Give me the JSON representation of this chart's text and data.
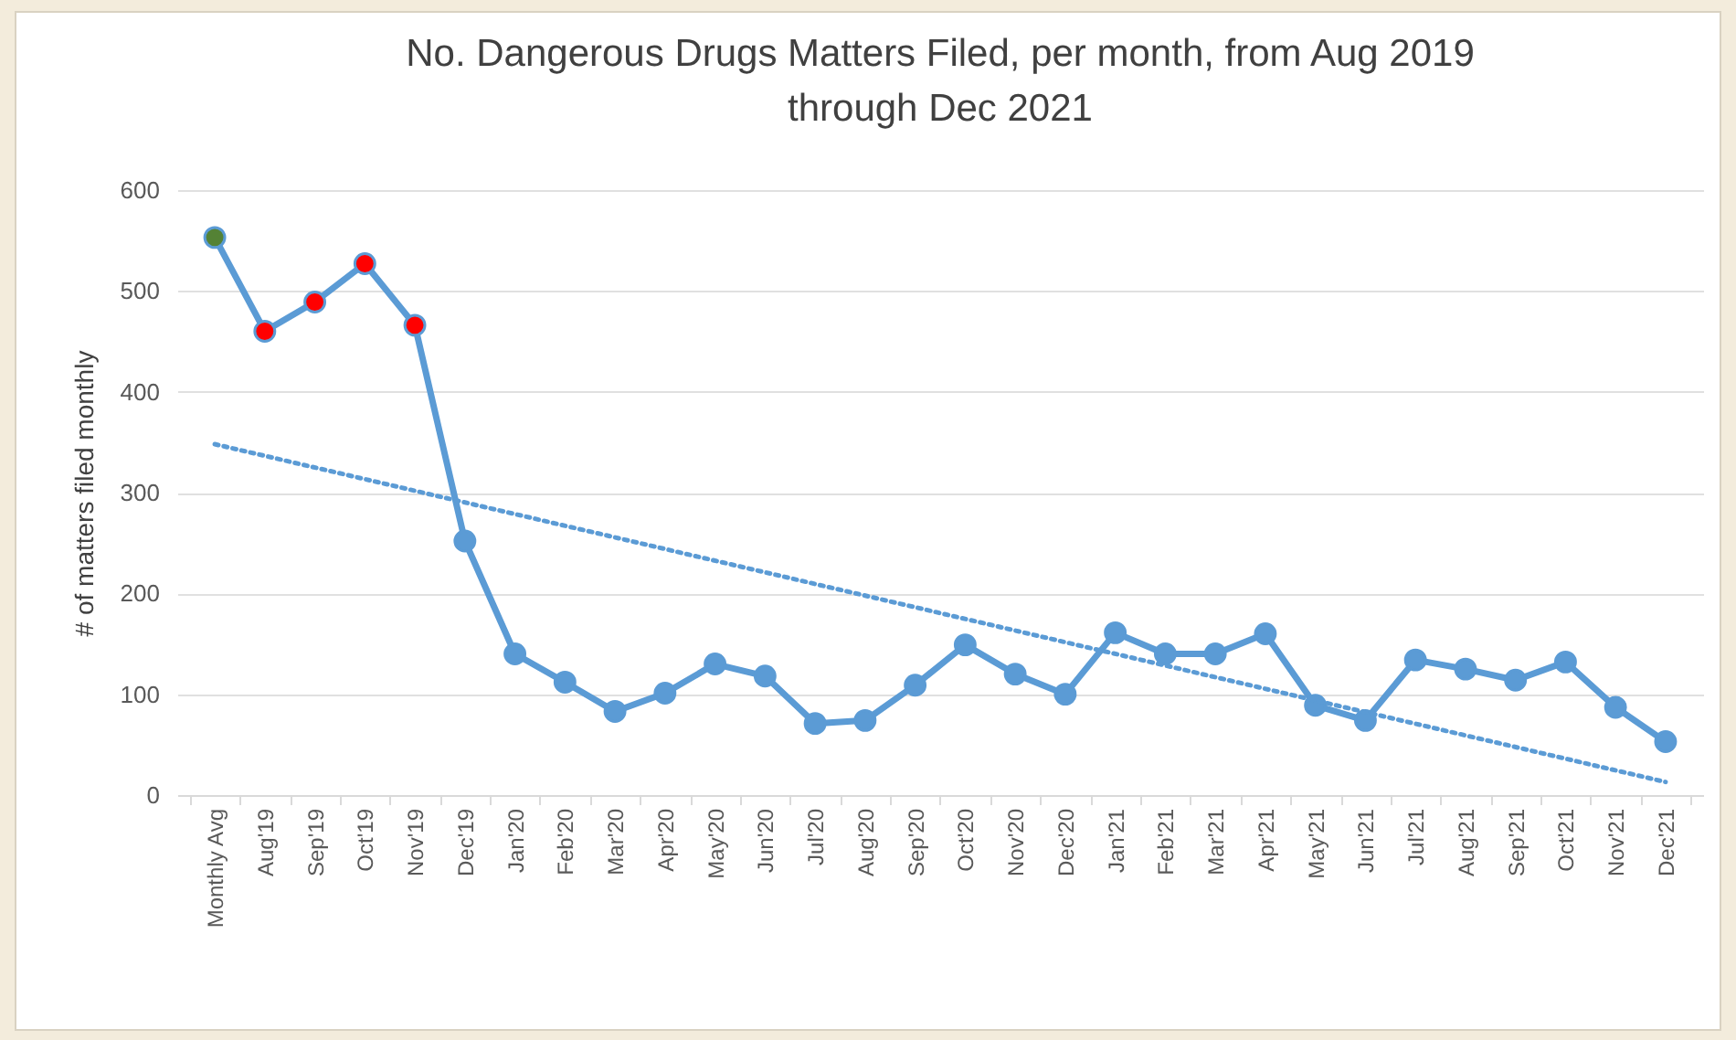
{
  "chart_data": {
    "type": "line",
    "title": "No. Dangerous Drugs Matters Filed, per month, from Aug 2019\nthrough Dec 2021",
    "ylabel": "# of matters filed monthly",
    "categories": [
      "Monthly Avg",
      "Aug'19",
      "Sep'19",
      "Oct'19",
      "Nov'19",
      "Dec'19",
      "Jan'20",
      "Feb'20",
      "Mar'20",
      "Apr'20",
      "May'20",
      "Jun'20",
      "Jul'20",
      "Aug'20",
      "Sep'20",
      "Oct'20",
      "Nov'20",
      "Dec'20",
      "Jan'21",
      "Feb'21",
      "Mar'21",
      "Apr'21",
      "May'21",
      "Jun'21",
      "Jul'21",
      "Aug'21",
      "Sep'21",
      "Oct'21",
      "Nov'21",
      "Dec'21"
    ],
    "series": [
      {
        "color": "#5b9bd5",
        "marker": "circle",
        "line_style": "solid",
        "colors": [
          "#548235",
          "#ff0000",
          "#ff0000",
          "#ff0000",
          "#ff0000",
          "#5b9bd5",
          "#5b9bd5",
          "#5b9bd5",
          "#5b9bd5",
          "#5b9bd5",
          "#5b9bd5",
          "#5b9bd5",
          "#5b9bd5",
          "#5b9bd5",
          "#5b9bd5",
          "#5b9bd5",
          "#5b9bd5",
          "#5b9bd5",
          "#5b9bd5",
          "#5b9bd5",
          "#5b9bd5",
          "#5b9bd5",
          "#5b9bd5",
          "#5b9bd5",
          "#5b9bd5",
          "#5b9bd5",
          "#5b9bd5",
          "#5b9bd5",
          "#5b9bd5",
          "#5b9bd5"
        ],
        "values": [
          553,
          460,
          489,
          527,
          466,
          252,
          140,
          112,
          83,
          101,
          130,
          118,
          71,
          74,
          109,
          149,
          120,
          100,
          161,
          140,
          140,
          160,
          89,
          74,
          134,
          125,
          114,
          132,
          87,
          53
        ]
      },
      {
        "type": "line",
        "color": "#5b9bd5",
        "marker": "none",
        "line_style": "dotted",
        "x": [
          "Monthly Avg",
          "Dec'21"
        ],
        "values": [
          348,
          13
        ]
      }
    ],
    "ylim": [
      0,
      600
    ],
    "yticks": [
      0,
      100,
      200,
      300,
      400,
      500,
      600
    ],
    "grid": "y"
  }
}
